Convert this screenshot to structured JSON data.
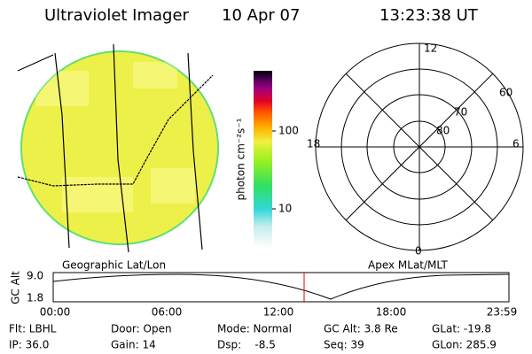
{
  "header": {
    "title": "Ultraviolet Imager",
    "date": "10 Apr 07",
    "time": "13:23:38 UT"
  },
  "colorbar": {
    "unit_label": "photon cm⁻²s⁻¹",
    "ticks": [
      "100",
      "10"
    ]
  },
  "polar": {
    "hour_labels": [
      "12",
      "18",
      "6",
      "0"
    ],
    "lat_labels": [
      "60",
      "70",
      "80"
    ]
  },
  "altitude": {
    "left_title": "Geographic Lat/Lon",
    "right_title": "Apex MLat/MLT",
    "axis_label": "GC Alt",
    "y_labels": [
      "9.0",
      "1.8"
    ],
    "time_labels": [
      "00:00",
      "06:00",
      "12:00",
      "18:00",
      "23:59"
    ]
  },
  "status": {
    "rows": [
      [
        "Flt: LBHL",
        "Door: Open",
        "Mode: Normal",
        "GC Alt: 3.8 Re",
        "GLat: -19.8"
      ],
      [
        "IP: 36.0",
        "Gain: 14",
        "Dsp:    -8.5",
        "Seq: 39",
        "GLon: 285.9"
      ]
    ]
  }
}
